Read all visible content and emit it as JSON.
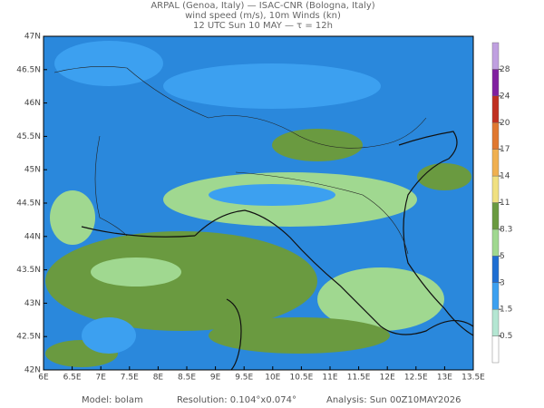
{
  "header": {
    "lines": [
      "ARPAL (Genoa, Italy)  —  ISAC-CNR (Bologna, Italy)",
      "wind speed (m/s), 10m Winds (kn)",
      "12 UTC Sun 10 MAY  —  τ = 12h"
    ]
  },
  "map": {
    "lat_labels": [
      "47N",
      "46.5N",
      "46N",
      "45.5N",
      "45N",
      "44.5N",
      "44N",
      "43.5N",
      "43N",
      "42.5N",
      "42N"
    ],
    "lon_labels": [
      "6E",
      "6.5E",
      "7E",
      "7.5E",
      "8E",
      "8.5E",
      "9E",
      "9.5E",
      "10E",
      "10.5E",
      "11E",
      "11.5E",
      "12E",
      "12.5E",
      "13E",
      "13.5E"
    ]
  },
  "colorbar": {
    "levels": [
      0.5,
      1.5,
      3,
      5,
      8.3,
      11,
      14,
      17,
      20,
      24,
      28
    ],
    "colors": [
      "#ffffff",
      "#b4e6d2",
      "#3ca0f0",
      "#1e6ed2",
      "#a0d890",
      "#6a9a40",
      "#f0e080",
      "#f0b050",
      "#e07830",
      "#c03020",
      "#8020a0",
      "#c0a0e0"
    ]
  },
  "footer": {
    "model": "Model: bolam",
    "resolution": "Resolution: 0.104°x0.074°",
    "analysis": "Analysis: Sun 00Z10MAY2026"
  }
}
